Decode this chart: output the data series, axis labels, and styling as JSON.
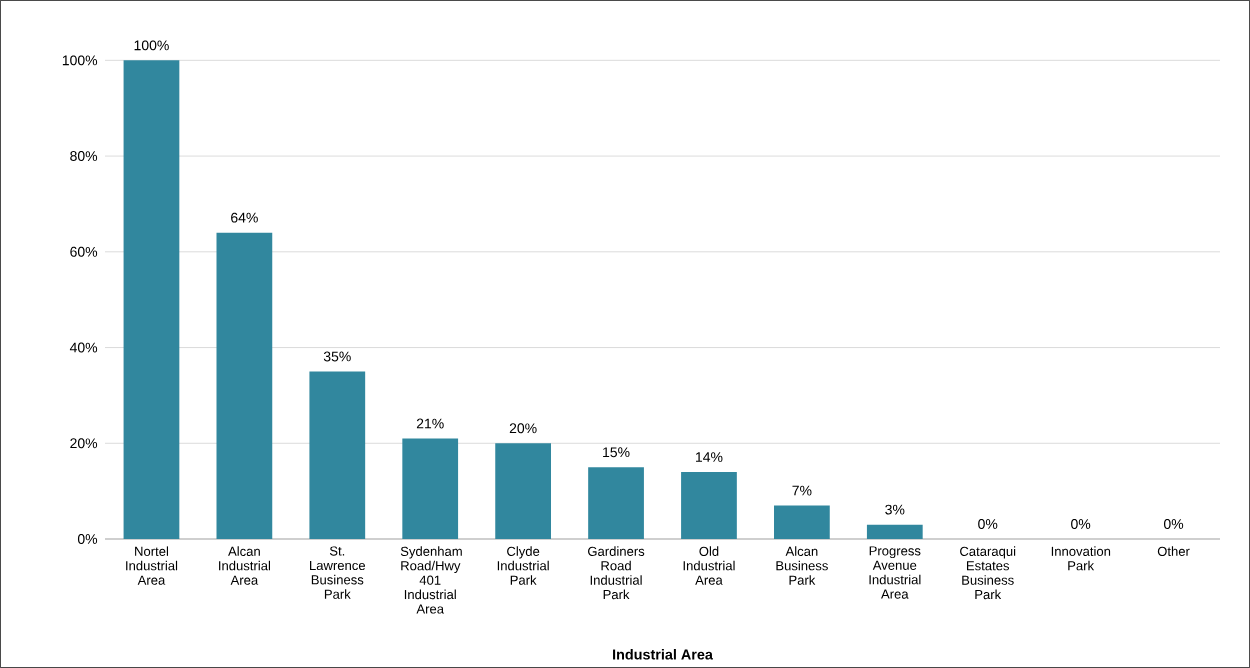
{
  "chart_data": {
    "type": "bar",
    "xlabel": "Industrial Area",
    "categories": [
      "Nortel Industrial Area",
      "Alcan Industrial Area",
      "St. Lawrence Business Park",
      "Sydenham Road/Hwy 401 Industrial Area",
      "Clyde Industrial Park",
      "Gardiners Road Industrial Park",
      "Old Industrial Area",
      "Alcan Business Park",
      "Progress Avenue Industrial Area",
      "Cataraqui Estates Business Park",
      "Innovation Park",
      "Other"
    ],
    "values": [
      100,
      64,
      35,
      21,
      20,
      15,
      14,
      7,
      3,
      0,
      0,
      0
    ],
    "value_labels": [
      "100%",
      "64%",
      "35%",
      "21%",
      "20%",
      "15%",
      "14%",
      "7%",
      "3%",
      "0%",
      "0%",
      "0%"
    ],
    "color": "#31879e",
    "ylim": [
      0,
      100
    ],
    "yticks": [
      {
        "value": 0,
        "label": "0%"
      },
      {
        "value": 20,
        "label": "20%"
      },
      {
        "value": 40,
        "label": "40%"
      },
      {
        "value": 60,
        "label": "60%"
      },
      {
        "value": 80,
        "label": "80%"
      },
      {
        "value": 100,
        "label": "100%"
      }
    ],
    "grid": "y"
  }
}
